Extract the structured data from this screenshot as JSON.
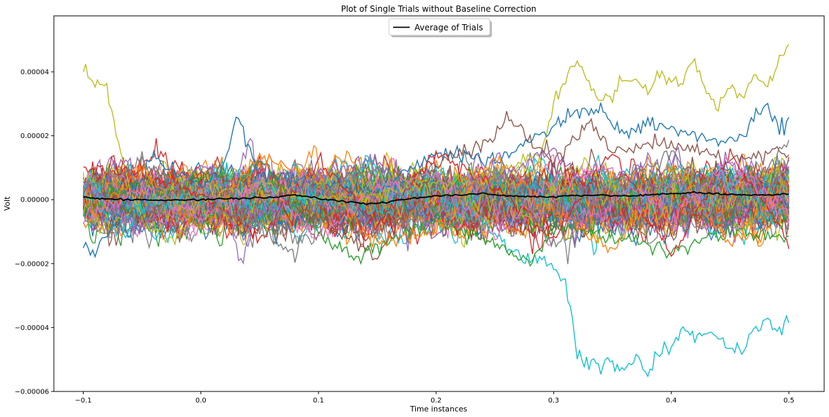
{
  "chart_data": {
    "type": "line",
    "title": "Plot of Single Trials without Baseline Correction",
    "xlabel": "Time instances",
    "ylabel": "Volt",
    "xlim": [
      -0.125,
      0.53
    ],
    "ylim": [
      -6e-05,
      5.75e-05
    ],
    "x_ticks": [
      -0.1,
      0.0,
      0.1,
      0.2,
      0.3,
      0.4,
      0.5
    ],
    "x_tick_labels": [
      "−0.1",
      "0.0",
      "0.1",
      "0.2",
      "0.3",
      "0.4",
      "0.5"
    ],
    "y_ticks": [
      -6e-05,
      -4e-05,
      -2e-05,
      0.0,
      2e-05,
      4e-05
    ],
    "y_tick_labels": [
      "−0.00006",
      "−0.00004",
      "−0.00002",
      "0.00000",
      "0.00002",
      "0.00004"
    ],
    "grid": false,
    "legend": {
      "position": "upper center",
      "entries": [
        "Average of Trials"
      ]
    },
    "palette": [
      "#1f77b4",
      "#ff7f0e",
      "#2ca02c",
      "#d62728",
      "#9467bd",
      "#8c564b",
      "#e377c2",
      "#7f7f7f",
      "#bcbd22",
      "#17becf"
    ],
    "average_color": "#000000",
    "series": [
      {
        "name": "Average of Trials",
        "color": "#000000",
        "x": [
          -0.1,
          -0.08,
          -0.06,
          -0.04,
          -0.02,
          0.0,
          0.02,
          0.04,
          0.06,
          0.08,
          0.1,
          0.12,
          0.14,
          0.16,
          0.18,
          0.2,
          0.22,
          0.24,
          0.26,
          0.28,
          0.3,
          0.32,
          0.34,
          0.36,
          0.38,
          0.4,
          0.42,
          0.44,
          0.46,
          0.48,
          0.5
        ],
        "y": [
          8e-07,
          2e-07,
          0.0,
          -2e-07,
          0.0,
          0.0,
          3e-07,
          5e-07,
          8e-07,
          1.5e-06,
          5e-07,
          -5e-07,
          -1.2e-06,
          -8e-07,
          5e-07,
          1.2e-06,
          1.5e-06,
          1.8e-06,
          1.2e-06,
          1e-06,
          8e-07,
          1.2e-06,
          1.5e-06,
          1.2e-06,
          1.5e-06,
          1.8e-06,
          2.2e-06,
          1.8e-06,
          1.5e-06,
          1.5e-06,
          1.8e-06
        ]
      },
      {
        "name": "",
        "color": "#bcbd22",
        "x": [
          -0.1,
          -0.09,
          -0.08,
          -0.07,
          -0.06,
          -0.04,
          -0.02,
          0.0,
          0.05,
          0.1,
          0.15,
          0.2,
          0.25,
          0.29,
          0.3,
          0.31,
          0.32,
          0.33,
          0.34,
          0.35,
          0.36,
          0.37,
          0.38,
          0.39,
          0.4,
          0.41,
          0.42,
          0.43,
          0.44,
          0.45,
          0.46,
          0.47,
          0.48,
          0.49,
          0.5
        ],
        "y": [
          4.2e-05,
          3.6e-05,
          3.5e-05,
          1.8e-05,
          2e-06,
          -1e-05,
          -1.2e-05,
          0.0,
          5e-06,
          0.0,
          2e-06,
          5e-06,
          8e-06,
          1.5e-05,
          3e-05,
          3.8e-05,
          4.3e-05,
          3.6e-05,
          3e-05,
          3.3e-05,
          3.8e-05,
          3.7e-05,
          3.4e-05,
          4e-05,
          3.6e-05,
          3.8e-05,
          4.3e-05,
          3.4e-05,
          3e-05,
          3.6e-05,
          3.2e-05,
          4e-05,
          3.6e-05,
          4.2e-05,
          4.9e-05
        ]
      },
      {
        "name": "",
        "color": "#17becf",
        "x": [
          -0.1,
          -0.05,
          0.0,
          0.05,
          0.1,
          0.15,
          0.2,
          0.25,
          0.27,
          0.29,
          0.3,
          0.31,
          0.32,
          0.33,
          0.34,
          0.35,
          0.36,
          0.37,
          0.38,
          0.39,
          0.4,
          0.41,
          0.42,
          0.43,
          0.44,
          0.45,
          0.46,
          0.47,
          0.48,
          0.49,
          0.5
        ],
        "y": [
          2e-06,
          -2e-06,
          0.0,
          -3e-06,
          1e-06,
          -4e-06,
          3e-06,
          -1e-05,
          -1.7e-05,
          -1.9e-05,
          -2.2e-05,
          -2.5e-05,
          -4.8e-05,
          -5.1e-05,
          -5.2e-05,
          -5e-05,
          -5.3e-05,
          -4.9e-05,
          -5.4e-05,
          -4.8e-05,
          -4.6e-05,
          -4e-05,
          -4.4e-05,
          -4.2e-05,
          -4.3e-05,
          -4.6e-05,
          -4.8e-05,
          -4.2e-05,
          -3.7e-05,
          -4.1e-05,
          -3.9e-05
        ]
      },
      {
        "name": "",
        "color": "#1f77b4",
        "x": [
          -0.1,
          -0.09,
          -0.08,
          -0.06,
          -0.04,
          -0.02,
          0.0,
          0.02,
          0.03,
          0.05,
          0.1,
          0.15,
          0.2,
          0.25,
          0.28,
          0.3,
          0.32,
          0.34,
          0.36,
          0.38,
          0.4,
          0.42,
          0.44,
          0.46,
          0.48,
          0.49,
          0.5
        ],
        "y": [
          -1.5e-05,
          -1.7e-05,
          -1e-05,
          0.0,
          1.4e-05,
          8e-06,
          5e-06,
          1e-05,
          2.6e-05,
          8e-06,
          5e-06,
          2e-06,
          1.5e-05,
          1.2e-05,
          1.8e-05,
          2.2e-05,
          2.7e-05,
          2.9e-05,
          2e-05,
          2.4e-05,
          2.2e-05,
          2e-05,
          1.8e-05,
          2e-05,
          3e-05,
          2.3e-05,
          2.4e-05
        ]
      },
      {
        "name": "",
        "color": "#8c564b",
        "x": [
          -0.1,
          -0.05,
          0.0,
          0.05,
          0.1,
          0.15,
          0.2,
          0.25,
          0.26,
          0.3,
          0.33,
          0.35,
          0.4,
          0.45,
          0.5
        ],
        "y": [
          5e-06,
          -6e-06,
          8e-06,
          4e-06,
          -6e-06,
          -1.8e-05,
          1e-05,
          2e-05,
          2.6e-05,
          1.2e-05,
          2.4e-05,
          1.5e-05,
          1.8e-05,
          1.2e-05,
          1.5e-05
        ]
      },
      {
        "name": "",
        "color": "#2ca02c",
        "x": [
          -0.1,
          -0.05,
          0.0,
          0.05,
          0.1,
          0.13,
          0.15,
          0.2,
          0.25,
          0.28,
          0.3,
          0.35,
          0.4,
          0.45,
          0.5
        ],
        "y": [
          -4e-06,
          6e-06,
          -8e-06,
          1.2e-05,
          -1e-05,
          -1.8e-05,
          -1.5e-05,
          -6e-06,
          -1.4e-05,
          -2e-05,
          -8e-06,
          -1.2e-05,
          -1.6e-05,
          -1e-05,
          -1.2e-05
        ]
      },
      {
        "name": "",
        "color": "#d62728",
        "x": [
          -0.1,
          -0.05,
          0.0,
          0.05,
          0.1,
          0.15,
          0.2,
          0.25,
          0.3,
          0.35,
          0.4,
          0.45,
          0.5
        ],
        "y": [
          1e-05,
          8e-06,
          2e-06,
          -1.2e-05,
          1.2e-05,
          -8e-06,
          1.4e-05,
          4e-06,
          -1.2e-05,
          1.6e-05,
          -1.8e-05,
          1.5e-05,
          -1.3e-05
        ]
      },
      {
        "name": "",
        "color": "#ff7f0e",
        "x": [
          -0.1,
          -0.05,
          0.0,
          0.05,
          0.1,
          0.15,
          0.2,
          0.25,
          0.3,
          0.35,
          0.4,
          0.45,
          0.5
        ],
        "y": [
          -8e-06,
          1e-05,
          -1e-05,
          1.4e-05,
          6e-06,
          -1.4e-05,
          -1e-05,
          1.4e-05,
          -4e-06,
          -1.6e-05,
          1e-05,
          -1.4e-05,
          6e-06
        ]
      },
      {
        "name": "",
        "color": "#9467bd",
        "x": [
          -0.1,
          -0.05,
          0.0,
          0.05,
          0.1,
          0.15,
          0.2,
          0.25,
          0.3,
          0.35,
          0.4,
          0.45,
          0.5
        ],
        "y": [
          6e-06,
          -1e-05,
          1.2e-05,
          -6e-06,
          8e-06,
          1.2e-05,
          -1.2e-05,
          6e-06,
          1.6e-05,
          -1e-05,
          8e-06,
          -8e-06,
          1e-05
        ]
      },
      {
        "name": "",
        "color": "#e377c2",
        "x": [
          -0.1,
          -0.05,
          0.0,
          0.05,
          0.1,
          0.15,
          0.2,
          0.25,
          0.3,
          0.35,
          0.4,
          0.45,
          0.5
        ],
        "y": [
          -6e-06,
          4e-06,
          -6e-06,
          6e-06,
          -1.2e-05,
          4e-06,
          8e-06,
          -1.2e-05,
          6e-06,
          1e-05,
          -6e-06,
          1.2e-05,
          -6e-06
        ]
      },
      {
        "name": "",
        "color": "#7f7f7f",
        "x": [
          -0.1,
          -0.05,
          0.0,
          0.05,
          0.08,
          0.1,
          0.15,
          0.2,
          0.25,
          0.3,
          0.35,
          0.4,
          0.45,
          0.5
        ],
        "y": [
          4e-06,
          1.2e-05,
          -2e-06,
          -8e-06,
          -1.8e-05,
          2e-06,
          1e-05,
          -4e-06,
          1e-05,
          -1.4e-05,
          4e-06,
          1.4e-05,
          -4e-06,
          1.8e-05
        ]
      }
    ]
  }
}
